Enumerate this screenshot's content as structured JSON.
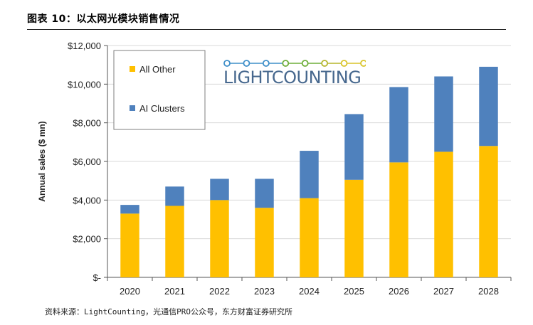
{
  "header": {
    "figure_title": "图表 10：以太网光模块销售情况"
  },
  "footer": {
    "source": "资料来源：LightCounting，光通信PRO公众号，东方财富证券研究所"
  },
  "logo": {
    "text": "LIGHTCOUNTING",
    "chain_colors": [
      "#3f8fc9",
      "#3f8fc9",
      "#3f8fc9",
      "#6fae3a",
      "#6fae3a",
      "#b5b52c",
      "#d9c42a",
      "#d9c42a"
    ]
  },
  "colors": {
    "ai_other": "#ffc000",
    "ai_clusters": "#4f81bd",
    "axis": "#555555",
    "grid": "#d9d9d9",
    "logo_text": "#47688e"
  },
  "chart_data": {
    "type": "bar",
    "stacked": true,
    "categories": [
      "2020",
      "2021",
      "2022",
      "2023",
      "2024",
      "2025",
      "2026",
      "2027",
      "2028"
    ],
    "series": [
      {
        "name": "All Other",
        "color": "#ffc000",
        "values": [
          3300,
          3700,
          4000,
          3600,
          4100,
          5050,
          5950,
          6500,
          6800
        ]
      },
      {
        "name": "AI Clusters",
        "color": "#4f81bd",
        "values": [
          450,
          1000,
          1100,
          1500,
          2450,
          3400,
          3900,
          3900,
          4100
        ]
      }
    ],
    "ylabel": "Annual sales ($ mn)",
    "xlabel": "",
    "ylim": [
      0,
      12000
    ],
    "yticks": [
      0,
      2000,
      4000,
      6000,
      8000,
      10000,
      12000
    ],
    "ytick_labels": [
      "$-",
      "$2,000",
      "$4,000",
      "$6,000",
      "$8,000",
      "$10,000",
      "$12,000"
    ],
    "grid": true,
    "legend": {
      "position": "top-left",
      "entries": [
        "All Other",
        "AI Clusters"
      ]
    }
  }
}
